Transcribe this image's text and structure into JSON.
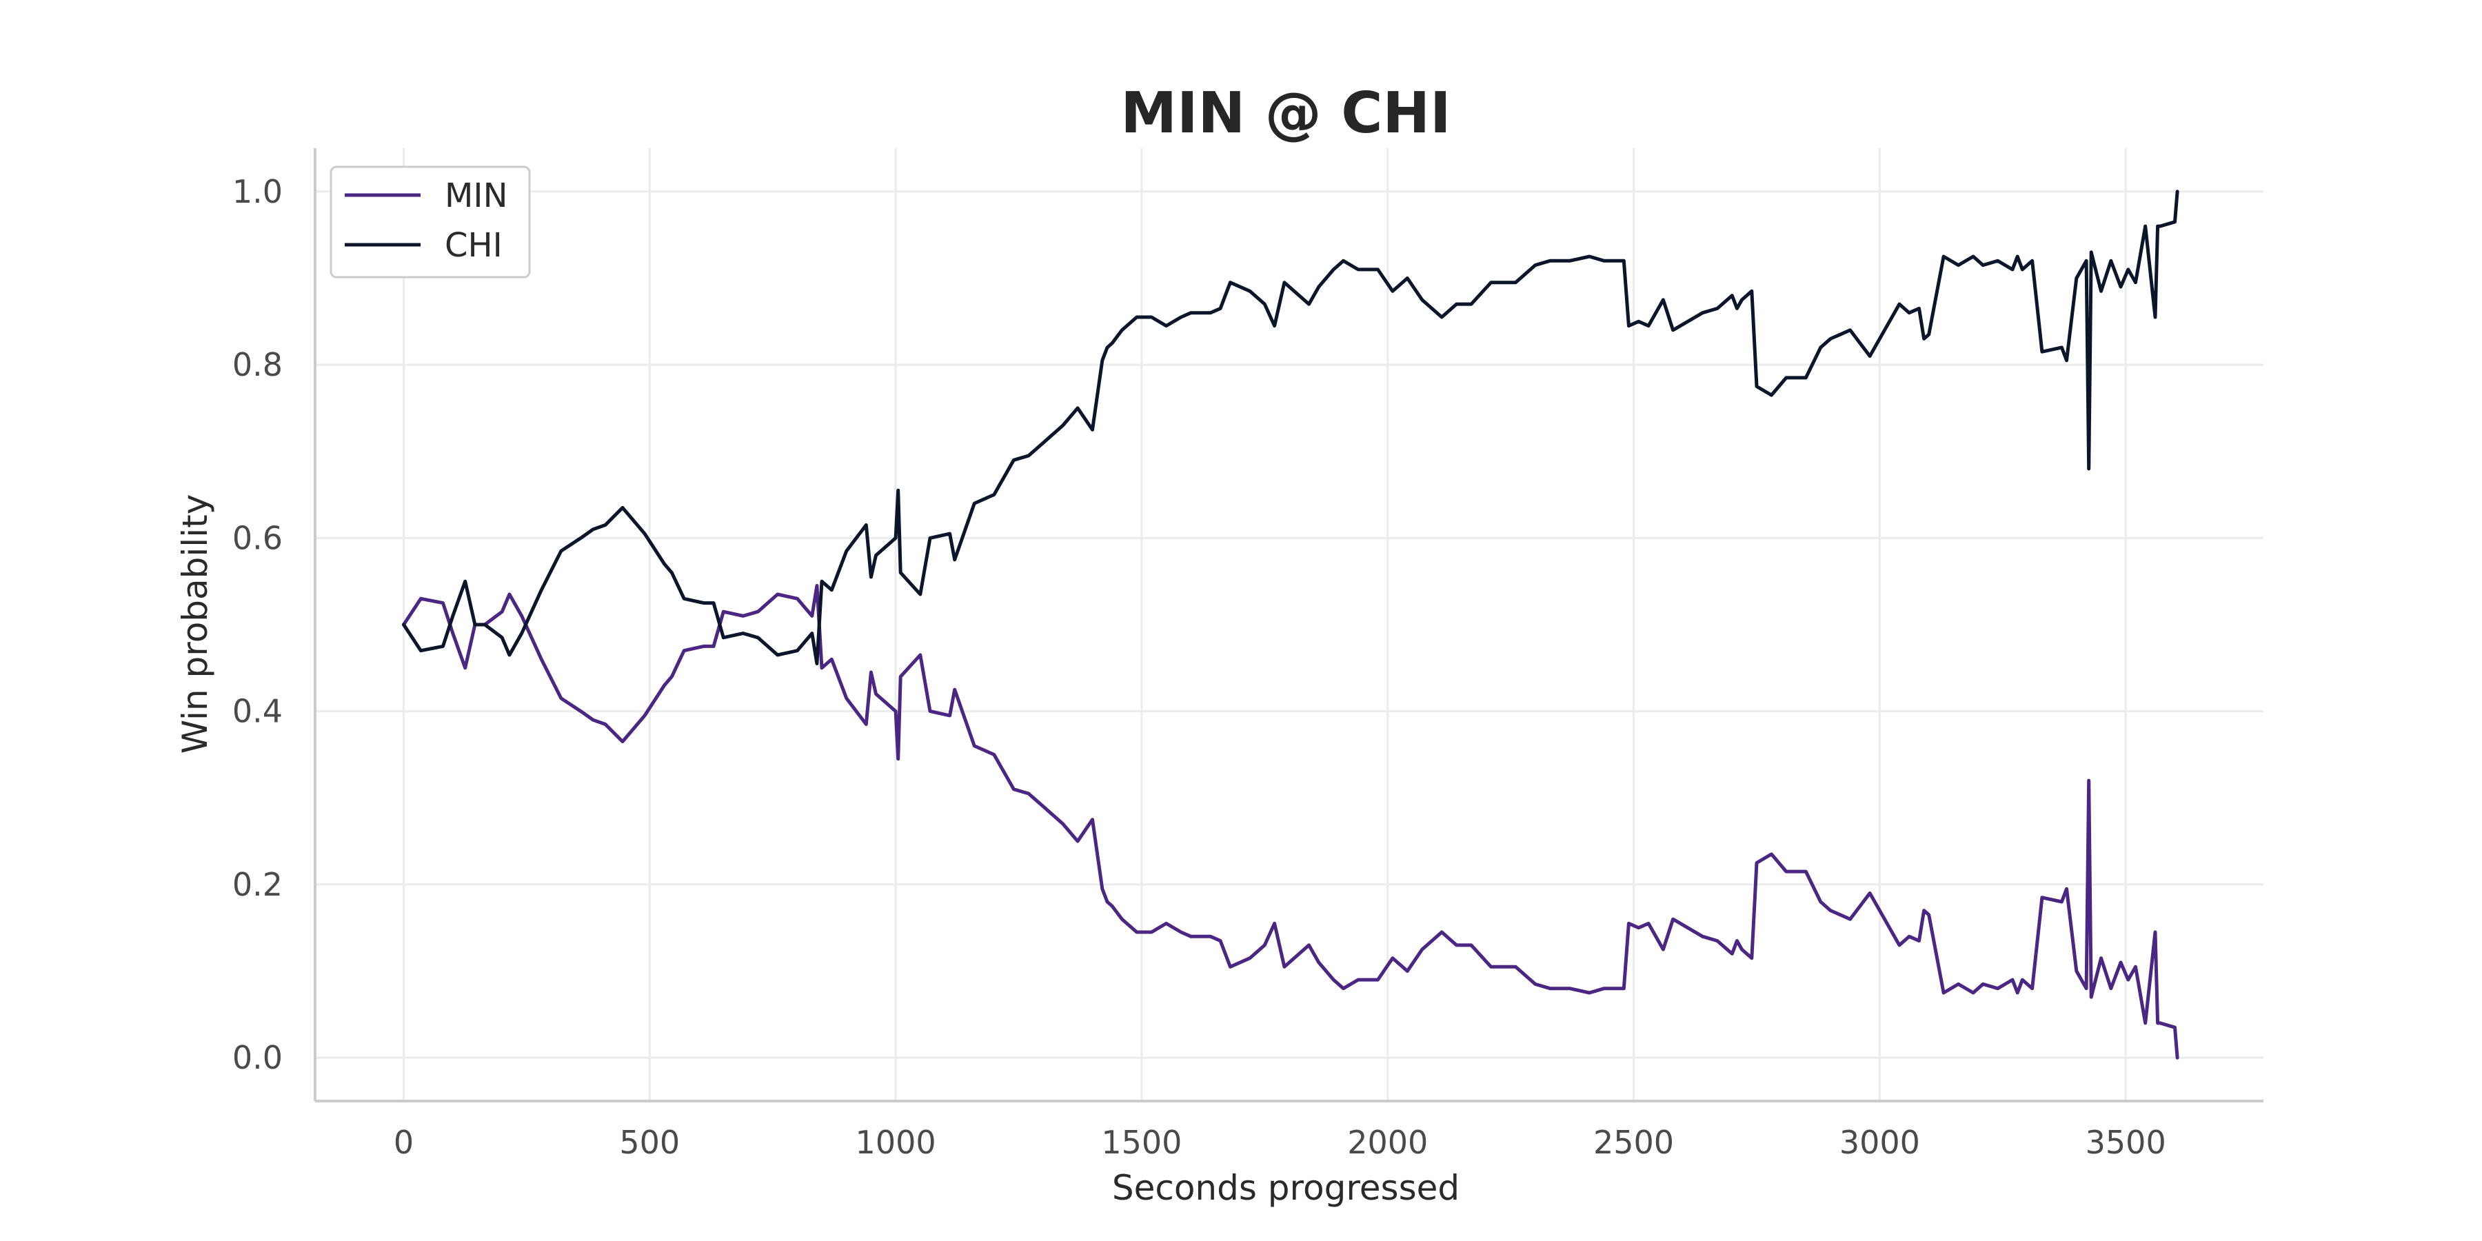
{
  "chart_data": {
    "type": "line",
    "title": "MIN @ CHI",
    "xlabel": "Seconds progressed",
    "ylabel": "Win probability",
    "xlim": [
      -180,
      3780
    ],
    "ylim": [
      -0.05,
      1.05
    ],
    "xticks": [
      "0",
      "500",
      "1000",
      "1500",
      "2000",
      "2500",
      "3000",
      "3500"
    ],
    "yticks": [
      "0.0",
      "0.2",
      "0.4",
      "0.6",
      "0.8",
      "1.0"
    ],
    "grid": true,
    "legend": {
      "position": "top-left",
      "items": [
        "MIN",
        "CHI"
      ]
    },
    "colors": {
      "MIN": "#4b2683",
      "CHI": "#0b162a"
    },
    "series": [
      {
        "name": "MIN",
        "x": [
          0,
          35,
          80,
          100,
          125,
          145,
          165,
          200,
          215,
          240,
          280,
          320,
          360,
          385,
          410,
          445,
          490,
          530,
          545,
          570,
          610,
          630,
          650,
          690,
          720,
          760,
          800,
          830,
          840,
          850,
          870,
          900,
          940,
          950,
          960,
          1000,
          1005,
          1010,
          1050,
          1070,
          1110,
          1120,
          1160,
          1200,
          1240,
          1270,
          1300,
          1340,
          1370,
          1400,
          1420,
          1430,
          1440,
          1460,
          1490,
          1520,
          1550,
          1580,
          1600,
          1640,
          1660,
          1680,
          1720,
          1750,
          1770,
          1790,
          1810,
          1840,
          1860,
          1890,
          1910,
          1940,
          1980,
          2010,
          2040,
          2070,
          2110,
          2140,
          2170,
          2210,
          2260,
          2300,
          2330,
          2370,
          2410,
          2440,
          2480,
          2490,
          2510,
          2530,
          2560,
          2580,
          2610,
          2640,
          2670,
          2700,
          2710,
          2720,
          2740,
          2750,
          2780,
          2810,
          2850,
          2880,
          2900,
          2940,
          2980,
          3010,
          3040,
          3060,
          3080,
          3090,
          3100,
          3130,
          3160,
          3190,
          3210,
          3240,
          3270,
          3280,
          3290,
          3310,
          3330,
          3370,
          3380,
          3400,
          3420,
          3425,
          3430,
          3450,
          3470,
          3490,
          3505,
          3520,
          3540,
          3560,
          3565,
          3570,
          3600,
          3605
        ],
        "y": [
          0.5,
          0.53,
          0.525,
          0.49,
          0.45,
          0.5,
          0.5,
          0.515,
          0.535,
          0.51,
          0.46,
          0.415,
          0.4,
          0.39,
          0.385,
          0.365,
          0.395,
          0.43,
          0.44,
          0.47,
          0.475,
          0.475,
          0.515,
          0.51,
          0.515,
          0.535,
          0.53,
          0.51,
          0.545,
          0.45,
          0.46,
          0.415,
          0.385,
          0.445,
          0.42,
          0.4,
          0.345,
          0.44,
          0.465,
          0.4,
          0.395,
          0.425,
          0.36,
          0.35,
          0.31,
          0.305,
          0.29,
          0.27,
          0.25,
          0.275,
          0.195,
          0.18,
          0.175,
          0.16,
          0.145,
          0.145,
          0.155,
          0.145,
          0.14,
          0.14,
          0.135,
          0.105,
          0.115,
          0.13,
          0.155,
          0.105,
          0.115,
          0.13,
          0.11,
          0.09,
          0.08,
          0.09,
          0.09,
          0.115,
          0.1,
          0.125,
          0.145,
          0.13,
          0.13,
          0.105,
          0.105,
          0.085,
          0.08,
          0.08,
          0.075,
          0.08,
          0.08,
          0.155,
          0.15,
          0.155,
          0.125,
          0.16,
          0.15,
          0.14,
          0.135,
          0.12,
          0.135,
          0.125,
          0.115,
          0.225,
          0.235,
          0.215,
          0.215,
          0.18,
          0.17,
          0.16,
          0.19,
          0.16,
          0.13,
          0.14,
          0.135,
          0.17,
          0.165,
          0.075,
          0.085,
          0.075,
          0.085,
          0.08,
          0.09,
          0.075,
          0.09,
          0.08,
          0.185,
          0.18,
          0.195,
          0.1,
          0.08,
          0.32,
          0.07,
          0.115,
          0.08,
          0.11,
          0.09,
          0.105,
          0.04,
          0.145,
          0.04,
          0.04,
          0.035,
          0.0
        ]
      },
      {
        "name": "CHI",
        "x": [
          0,
          35,
          80,
          100,
          125,
          145,
          165,
          200,
          215,
          240,
          280,
          320,
          360,
          385,
          410,
          445,
          490,
          530,
          545,
          570,
          610,
          630,
          650,
          690,
          720,
          760,
          800,
          830,
          840,
          850,
          870,
          900,
          940,
          950,
          960,
          1000,
          1005,
          1010,
          1050,
          1070,
          1110,
          1120,
          1160,
          1200,
          1240,
          1270,
          1300,
          1340,
          1370,
          1400,
          1420,
          1430,
          1440,
          1460,
          1490,
          1520,
          1550,
          1580,
          1600,
          1640,
          1660,
          1680,
          1720,
          1750,
          1770,
          1790,
          1810,
          1840,
          1860,
          1890,
          1910,
          1940,
          1980,
          2010,
          2040,
          2070,
          2110,
          2140,
          2170,
          2210,
          2260,
          2300,
          2330,
          2370,
          2410,
          2440,
          2480,
          2490,
          2510,
          2530,
          2560,
          2580,
          2610,
          2640,
          2670,
          2700,
          2710,
          2720,
          2740,
          2750,
          2780,
          2810,
          2850,
          2880,
          2900,
          2940,
          2980,
          3010,
          3040,
          3060,
          3080,
          3090,
          3100,
          3130,
          3160,
          3190,
          3210,
          3240,
          3270,
          3280,
          3290,
          3310,
          3330,
          3370,
          3380,
          3400,
          3420,
          3425,
          3430,
          3450,
          3470,
          3490,
          3505,
          3520,
          3540,
          3560,
          3565,
          3570,
          3600,
          3605
        ],
        "y": [
          0.5,
          0.47,
          0.475,
          0.51,
          0.55,
          0.5,
          0.5,
          0.485,
          0.465,
          0.49,
          0.54,
          0.585,
          0.6,
          0.61,
          0.615,
          0.635,
          0.605,
          0.57,
          0.56,
          0.53,
          0.525,
          0.525,
          0.485,
          0.49,
          0.485,
          0.465,
          0.47,
          0.49,
          0.455,
          0.55,
          0.54,
          0.585,
          0.615,
          0.555,
          0.58,
          0.6,
          0.655,
          0.56,
          0.535,
          0.6,
          0.605,
          0.575,
          0.64,
          0.65,
          0.69,
          0.695,
          0.71,
          0.73,
          0.75,
          0.725,
          0.805,
          0.82,
          0.825,
          0.84,
          0.855,
          0.855,
          0.845,
          0.855,
          0.86,
          0.86,
          0.865,
          0.895,
          0.885,
          0.87,
          0.845,
          0.895,
          0.885,
          0.87,
          0.89,
          0.91,
          0.92,
          0.91,
          0.91,
          0.885,
          0.9,
          0.875,
          0.855,
          0.87,
          0.87,
          0.895,
          0.895,
          0.915,
          0.92,
          0.92,
          0.925,
          0.92,
          0.92,
          0.845,
          0.85,
          0.845,
          0.875,
          0.84,
          0.85,
          0.86,
          0.865,
          0.88,
          0.865,
          0.875,
          0.885,
          0.775,
          0.765,
          0.785,
          0.785,
          0.82,
          0.83,
          0.84,
          0.81,
          0.84,
          0.87,
          0.86,
          0.865,
          0.83,
          0.835,
          0.925,
          0.915,
          0.925,
          0.915,
          0.92,
          0.91,
          0.925,
          0.91,
          0.92,
          0.815,
          0.82,
          0.805,
          0.9,
          0.92,
          0.68,
          0.93,
          0.885,
          0.92,
          0.89,
          0.91,
          0.895,
          0.96,
          0.855,
          0.96,
          0.96,
          0.965,
          1.0
        ]
      }
    ]
  }
}
